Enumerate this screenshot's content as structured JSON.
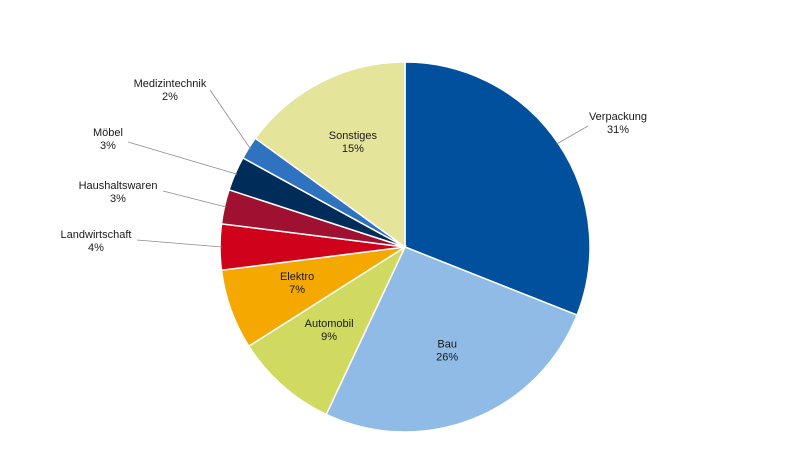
{
  "chart_data": {
    "type": "pie",
    "title": "",
    "start": "12 o'clock",
    "direction": "clockwise",
    "slices": [
      {
        "name": "Verpackung",
        "value": 31,
        "label": "31%",
        "color": "#00509e",
        "placement": "outside"
      },
      {
        "name": "Bau",
        "value": 26,
        "label": "26%",
        "color": "#8fbbe6",
        "placement": "inside"
      },
      {
        "name": "Automobil",
        "value": 9,
        "label": "9%",
        "color": "#d1da60",
        "placement": "inside"
      },
      {
        "name": "Elektro",
        "value": 7,
        "label": "7%",
        "color": "#f5a800",
        "placement": "inside"
      },
      {
        "name": "Landwirtschaft",
        "value": 4,
        "label": "4%",
        "color": "#d0021b",
        "placement": "outside"
      },
      {
        "name": "Haushaltswaren",
        "value": 3,
        "label": "3%",
        "color": "#a01030",
        "placement": "outside"
      },
      {
        "name": "Möbel",
        "value": 3,
        "label": "3%",
        "color": "#002c5a",
        "placement": "outside"
      },
      {
        "name": "Medizintechnik",
        "value": 2,
        "label": "2%",
        "color": "#2e72c0",
        "placement": "outside"
      },
      {
        "name": "Sonstiges",
        "value": 15,
        "label": "15%",
        "color": "#e4e49a",
        "placement": "inside"
      }
    ]
  }
}
